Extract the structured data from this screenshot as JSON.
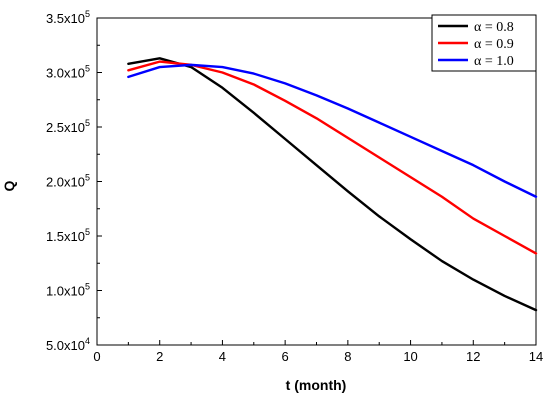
{
  "chart_data": {
    "type": "line",
    "xlabel": "t  (month)",
    "ylabel": "Q",
    "xlim": [
      0,
      14
    ],
    "ylim": [
      50000,
      350000
    ],
    "x_ticks": [
      0,
      2,
      4,
      6,
      8,
      10,
      12,
      14
    ],
    "y_ticks": [
      {
        "value": 50000,
        "mantissa": "5.0x10",
        "exp": "4"
      },
      {
        "value": 100000,
        "mantissa": "1.0x10",
        "exp": "5"
      },
      {
        "value": 150000,
        "mantissa": "1.5x10",
        "exp": "5"
      },
      {
        "value": 200000,
        "mantissa": "2.0x10",
        "exp": "5"
      },
      {
        "value": 250000,
        "mantissa": "2.5x10",
        "exp": "5"
      },
      {
        "value": 300000,
        "mantissa": "3.0x10",
        "exp": "5"
      },
      {
        "value": 350000,
        "mantissa": "3.5x10",
        "exp": "5"
      }
    ],
    "grid": false,
    "legend_position": "top-right",
    "x": [
      1,
      2,
      3,
      4,
      5,
      6,
      7,
      8,
      9,
      10,
      11,
      12,
      13,
      14
    ],
    "series": [
      {
        "name": "α = 0.8",
        "color": "#000000",
        "values": [
          308000,
          313000,
          305000,
          286000,
          263000,
          239000,
          215000,
          191000,
          168000,
          147000,
          127000,
          110000,
          95000,
          82000
        ]
      },
      {
        "name": "α = 0.9",
        "color": "#ff0000",
        "values": [
          302000,
          310000,
          307000,
          300000,
          289000,
          274000,
          258000,
          240000,
          222000,
          204000,
          186000,
          166000,
          150000,
          134000
        ]
      },
      {
        "name": "α = 1.0",
        "color": "#0000ff",
        "values": [
          296000,
          305000,
          307000,
          305000,
          299000,
          290000,
          279000,
          267000,
          254000,
          241000,
          228000,
          215000,
          200000,
          186000
        ]
      }
    ]
  }
}
